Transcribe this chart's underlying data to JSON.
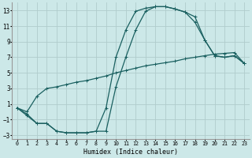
{
  "background_color": "#cce8e8",
  "grid_color": "#b0cccc",
  "line_color": "#1a6060",
  "xlabel": "Humidex (Indice chaleur)",
  "xlim": [
    -0.5,
    23.5
  ],
  "ylim": [
    -3.5,
    14.0
  ],
  "xticks": [
    0,
    1,
    2,
    3,
    4,
    5,
    6,
    7,
    8,
    9,
    10,
    11,
    12,
    13,
    14,
    15,
    16,
    17,
    18,
    19,
    20,
    21,
    22,
    23
  ],
  "yticks": [
    -3,
    -1,
    1,
    3,
    5,
    7,
    9,
    11,
    13
  ],
  "line1_x": [
    0,
    1,
    2,
    3,
    4,
    5,
    6,
    7,
    8,
    9,
    10,
    11,
    12,
    13,
    14,
    15,
    16,
    17,
    18,
    19,
    20,
    21,
    22,
    23
  ],
  "line1_y": [
    0.5,
    0.0,
    2.0,
    3.0,
    3.2,
    3.5,
    3.8,
    4.0,
    4.3,
    4.6,
    5.0,
    5.3,
    5.6,
    5.9,
    6.1,
    6.3,
    6.5,
    6.8,
    7.0,
    7.2,
    7.4,
    7.5,
    7.6,
    6.2
  ],
  "line2_x": [
    0,
    1,
    2,
    3,
    4,
    5,
    6,
    7,
    8,
    9,
    10,
    11,
    12,
    13,
    14,
    15,
    16,
    17,
    18,
    19,
    20,
    21,
    22,
    23
  ],
  "line2_y": [
    0.5,
    -0.3,
    -1.5,
    -1.5,
    -2.5,
    -2.7,
    -2.7,
    -2.7,
    -2.5,
    0.5,
    7.0,
    10.5,
    12.9,
    13.3,
    13.5,
    13.5,
    13.2,
    12.8,
    11.5,
    9.2,
    7.2,
    7.0,
    7.2,
    6.2
  ],
  "line3_x": [
    0,
    1,
    2,
    3,
    4,
    5,
    6,
    7,
    8,
    9,
    10,
    11,
    12,
    13,
    14,
    15,
    16,
    17,
    18,
    19,
    20,
    21,
    22,
    23
  ],
  "line3_y": [
    0.5,
    -0.5,
    -1.5,
    -1.5,
    -2.5,
    -2.7,
    -2.7,
    -2.7,
    -2.5,
    -2.5,
    3.2,
    7.0,
    10.5,
    12.9,
    13.5,
    13.5,
    13.2,
    12.8,
    12.2,
    9.2,
    7.2,
    7.0,
    7.2,
    6.2
  ]
}
